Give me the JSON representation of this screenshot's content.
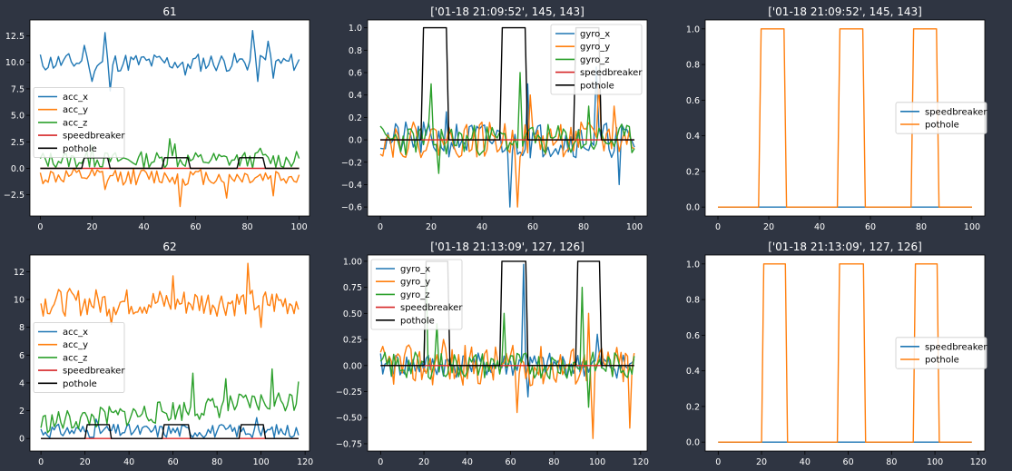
{
  "figure": {
    "background": "#2f3542",
    "text_color": "#ffffff"
  },
  "chart_data": [
    {
      "type": "line",
      "title": "61",
      "xlim": [
        -4,
        104
      ],
      "ylim": [
        -4.5,
        14.0
      ],
      "xticks": [
        0,
        20,
        40,
        60,
        80,
        100
      ],
      "yticks": [
        -2.5,
        0.0,
        2.5,
        5.0,
        7.5,
        10.0,
        12.5
      ],
      "ytick_labels": [
        "−2.5",
        "0.0",
        "2.5",
        "5.0",
        "7.5",
        "10.0",
        "12.5"
      ],
      "legend_position": "center-left",
      "series": [
        {
          "name": "acc_x",
          "color": "#1f77b4",
          "kind": "noise",
          "n": 101,
          "base": 10.0,
          "amp": 0.9,
          "seed": 11,
          "spikes": [
            [
              17,
              11.6
            ],
            [
              20,
              8.2
            ],
            [
              25,
              12.8
            ],
            [
              27,
              7.3
            ],
            [
              56,
              8.8
            ],
            [
              82,
              13.0
            ],
            [
              84,
              8.2
            ],
            [
              88,
              12.0
            ],
            [
              90,
              8.5
            ]
          ]
        },
        {
          "name": "acc_y",
          "color": "#ff7f0e",
          "kind": "noise",
          "n": 101,
          "base": -0.8,
          "amp": 0.8,
          "seed": 12,
          "spikes": [
            [
              25,
              -2.0
            ],
            [
              54,
              -3.6
            ],
            [
              72,
              -2.8
            ],
            [
              90,
              -2.6
            ]
          ]
        },
        {
          "name": "acc_z",
          "color": "#2ca02c",
          "kind": "noise",
          "n": 101,
          "base": 0.8,
          "amp": 0.8,
          "seed": 13,
          "spikes": [
            [
              20,
              2.2
            ],
            [
              50,
              2.8
            ],
            [
              52,
              2.3
            ],
            [
              85,
              1.9
            ]
          ]
        },
        {
          "name": "speedbreaker",
          "color": "#d62728",
          "kind": "step",
          "n": 101,
          "low": 0,
          "high": 1,
          "segments": []
        },
        {
          "name": "pothole",
          "color": "#000000",
          "kind": "step",
          "n": 101,
          "low": 0,
          "high": 1.0,
          "segments": [
            [
              17,
              26
            ],
            [
              48,
              57
            ],
            [
              77,
              86
            ]
          ]
        }
      ]
    },
    {
      "type": "line",
      "title": "['01-18 21:09:52', 145, 143]",
      "xlim": [
        -5,
        105
      ],
      "ylim": [
        -0.68,
        1.07
      ],
      "xticks": [
        0,
        20,
        40,
        60,
        80,
        100
      ],
      "yticks": [
        -0.6,
        -0.4,
        -0.2,
        0.0,
        0.2,
        0.4,
        0.6,
        0.8,
        1.0
      ],
      "ytick_labels": [
        "−0.6",
        "−0.4",
        "−0.2",
        "0.0",
        "0.2",
        "0.4",
        "0.6",
        "0.8",
        "1.0"
      ],
      "legend_position": "top-right",
      "series": [
        {
          "name": "gyro_x",
          "color": "#1f77b4",
          "kind": "noise",
          "n": 101,
          "base": 0.0,
          "amp": 0.16,
          "seed": 21,
          "spikes": [
            [
              26,
              0.25
            ],
            [
              51,
              -0.6
            ],
            [
              58,
              0.5
            ],
            [
              85,
              0.65
            ],
            [
              94,
              -0.4
            ]
          ]
        },
        {
          "name": "gyro_y",
          "color": "#ff7f0e",
          "kind": "noise",
          "n": 101,
          "base": 0.0,
          "amp": 0.16,
          "seed": 22,
          "spikes": [
            [
              54,
              -0.6
            ],
            [
              59,
              0.4
            ],
            [
              86,
              0.5
            ],
            [
              92,
              0.3
            ]
          ]
        },
        {
          "name": "gyro_z",
          "color": "#2ca02c",
          "kind": "noise",
          "n": 101,
          "base": 0.0,
          "amp": 0.14,
          "seed": 23,
          "spikes": [
            [
              20,
              0.5
            ],
            [
              23,
              -0.3
            ],
            [
              55,
              0.6
            ],
            [
              82,
              0.3
            ]
          ]
        },
        {
          "name": "speedbreaker",
          "color": "#d62728",
          "kind": "step",
          "n": 101,
          "low": 0,
          "high": 1,
          "segments": []
        },
        {
          "name": "pothole",
          "color": "#000000",
          "kind": "step",
          "n": 101,
          "low": 0,
          "high": 1.0,
          "segments": [
            [
              17,
              26
            ],
            [
              48,
              57
            ],
            [
              77,
              86
            ]
          ]
        }
      ]
    },
    {
      "type": "line",
      "title": "['01-18 21:09:52', 145, 143]",
      "xlim": [
        -5,
        105
      ],
      "ylim": [
        -0.05,
        1.05
      ],
      "xticks": [
        0,
        20,
        40,
        60,
        80,
        100
      ],
      "yticks": [
        0.0,
        0.2,
        0.4,
        0.6,
        0.8,
        1.0
      ],
      "ytick_labels": [
        "0.0",
        "0.2",
        "0.4",
        "0.6",
        "0.8",
        "1.0"
      ],
      "legend_position": "center-right",
      "series": [
        {
          "name": "speedbreaker",
          "color": "#1f77b4",
          "kind": "step",
          "n": 101,
          "low": 0,
          "high": 1,
          "segments": []
        },
        {
          "name": "pothole",
          "color": "#ff7f0e",
          "kind": "step",
          "n": 101,
          "low": 0,
          "high": 1.0,
          "segments": [
            [
              17,
              26
            ],
            [
              48,
              57
            ],
            [
              77,
              86
            ]
          ]
        }
      ]
    },
    {
      "type": "line",
      "title": "62",
      "xlim": [
        -5,
        122
      ],
      "ylim": [
        -0.9,
        13.2
      ],
      "xticks": [
        0,
        20,
        40,
        60,
        80,
        100,
        120
      ],
      "yticks": [
        0,
        2,
        4,
        6,
        8,
        10,
        12
      ],
      "ytick_labels": [
        "0",
        "2",
        "4",
        "6",
        "8",
        "10",
        "12"
      ],
      "legend_position": "center-left",
      "series": [
        {
          "name": "acc_x",
          "color": "#1f77b4",
          "kind": "noise",
          "n": 118,
          "base": 0.55,
          "amp": 0.5,
          "seed": 31,
          "spikes": [
            [
              25,
              1.4
            ],
            [
              58,
              0.9
            ],
            [
              98,
              1.5
            ],
            [
              100,
              0.2
            ]
          ]
        },
        {
          "name": "acc_y",
          "color": "#ff7f0e",
          "kind": "noise",
          "n": 118,
          "base": 9.8,
          "amp": 1.0,
          "seed": 32,
          "spikes": [
            [
              32,
              8.2
            ],
            [
              94,
              12.6
            ],
            [
              100,
              8.0
            ],
            [
              60,
              11.7
            ]
          ]
        },
        {
          "name": "acc_z",
          "color": "#2ca02c",
          "kind": "ramp",
          "n": 118,
          "start": 1.1,
          "end": 2.8,
          "amp": 0.8,
          "seed": 33,
          "spikes": [
            [
              69,
              4.7
            ],
            [
              84,
              4.3
            ],
            [
              105,
              5.0
            ],
            [
              117,
              4.1
            ]
          ]
        },
        {
          "name": "speedbreaker",
          "color": "#d62728",
          "kind": "step",
          "n": 118,
          "low": 0,
          "high": 1,
          "segments": []
        },
        {
          "name": "pothole",
          "color": "#000000",
          "kind": "step",
          "n": 118,
          "low": 0,
          "high": 1.0,
          "segments": [
            [
              21,
              31
            ],
            [
              56,
              67
            ],
            [
              91,
              101
            ]
          ]
        }
      ]
    },
    {
      "type": "line",
      "title": "['01-18 21:13:09', 127, 126]",
      "xlim": [
        -6,
        123
      ],
      "ylim": [
        -0.82,
        1.06
      ],
      "xticks": [
        0,
        20,
        40,
        60,
        80,
        100,
        120
      ],
      "yticks": [
        -0.75,
        -0.5,
        -0.25,
        0.0,
        0.25,
        0.5,
        0.75,
        1.0
      ],
      "ytick_labels": [
        "−0.75",
        "−0.50",
        "−0.25",
        "0.00",
        "0.25",
        "0.50",
        "0.75",
        "1.00"
      ],
      "legend_position": "top-left",
      "series": [
        {
          "name": "gyro_x",
          "color": "#1f77b4",
          "kind": "noise",
          "n": 118,
          "base": 0.0,
          "amp": 0.12,
          "seed": 41,
          "spikes": [
            [
              66,
              0.97
            ],
            [
              68,
              -0.3
            ],
            [
              100,
              0.3
            ]
          ]
        },
        {
          "name": "gyro_y",
          "color": "#ff7f0e",
          "kind": "noise",
          "n": 118,
          "base": 0.0,
          "amp": 0.2,
          "seed": 42,
          "spikes": [
            [
              29,
              0.25
            ],
            [
              63,
              -0.45
            ],
            [
              98,
              -0.7
            ],
            [
              115,
              -0.6
            ],
            [
              96,
              0.5
            ]
          ]
        },
        {
          "name": "gyro_z",
          "color": "#2ca02c",
          "kind": "noise",
          "n": 118,
          "base": 0.0,
          "amp": 0.13,
          "seed": 43,
          "spikes": [
            [
              21,
              0.95
            ],
            [
              26,
              0.4
            ],
            [
              57,
              0.5
            ],
            [
              93,
              0.75
            ],
            [
              96,
              -0.4
            ]
          ]
        },
        {
          "name": "speedbreaker",
          "color": "#d62728",
          "kind": "step",
          "n": 118,
          "low": 0,
          "high": 1,
          "segments": []
        },
        {
          "name": "pothole",
          "color": "#000000",
          "kind": "step",
          "n": 118,
          "low": 0,
          "high": 1.0,
          "segments": [
            [
              21,
              31
            ],
            [
              56,
              67
            ],
            [
              91,
              101
            ]
          ]
        }
      ]
    },
    {
      "type": "line",
      "title": "['01-18 21:13:09', 127, 126]",
      "xlim": [
        -6,
        123
      ],
      "ylim": [
        -0.05,
        1.05
      ],
      "xticks": [
        0,
        20,
        40,
        60,
        80,
        100,
        120
      ],
      "yticks": [
        0.0,
        0.2,
        0.4,
        0.6,
        0.8,
        1.0
      ],
      "ytick_labels": [
        "0.0",
        "0.2",
        "0.4",
        "0.6",
        "0.8",
        "1.0"
      ],
      "legend_position": "center-right",
      "series": [
        {
          "name": "speedbreaker",
          "color": "#1f77b4",
          "kind": "step",
          "n": 118,
          "low": 0,
          "high": 1,
          "segments": []
        },
        {
          "name": "pothole",
          "color": "#ff7f0e",
          "kind": "step",
          "n": 118,
          "low": 0,
          "high": 1.0,
          "segments": [
            [
              21,
              31
            ],
            [
              56,
              67
            ],
            [
              91,
              101
            ]
          ]
        }
      ]
    }
  ]
}
